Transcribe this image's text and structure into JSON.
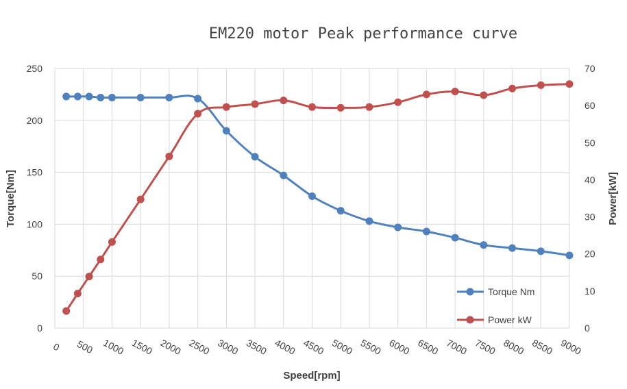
{
  "chart_data": {
    "type": "line",
    "title": "EM220 motor Peak performance curve",
    "xlabel": "Speed[rpm]",
    "ylabel": "Torque[Nm]",
    "y2label": "Power[kW]",
    "xlim": [
      0,
      9000
    ],
    "ylim": [
      0,
      250
    ],
    "y2lim": [
      0,
      70
    ],
    "x_ticks": [
      0,
      500,
      1000,
      1500,
      2000,
      2500,
      3000,
      3500,
      4000,
      4500,
      5000,
      5500,
      6000,
      6500,
      7000,
      7500,
      8000,
      8500,
      9000
    ],
    "y_ticks": [
      0,
      50,
      100,
      150,
      200,
      250
    ],
    "y2_ticks": [
      0,
      10,
      20,
      30,
      40,
      50,
      60,
      70
    ],
    "grid": true,
    "legend_position": "bottom-right",
    "series": [
      {
        "name": "Torque Nm",
        "axis": "left",
        "color": "#4f81bd",
        "x": [
          200,
          400,
          600,
          800,
          1000,
          1500,
          2000,
          2500,
          3000,
          3500,
          4000,
          4500,
          5000,
          5500,
          6000,
          6500,
          7000,
          7500,
          8000,
          8500,
          9000
        ],
        "values": [
          223,
          223,
          223,
          222,
          222,
          222,
          222,
          221,
          190,
          165,
          147,
          127,
          113,
          103,
          97,
          93,
          87,
          80,
          77,
          74,
          70
        ]
      },
      {
        "name": "Power kW",
        "axis": "right",
        "color": "#c0504d",
        "x": [
          200,
          400,
          600,
          800,
          1000,
          1500,
          2000,
          2500,
          3000,
          3500,
          4000,
          4500,
          5000,
          5500,
          6000,
          6500,
          7000,
          7500,
          8000,
          8500,
          9000
        ],
        "values": [
          4.6,
          9.3,
          13.9,
          18.5,
          23.2,
          34.7,
          46.3,
          57.8,
          59.6,
          60.4,
          61.4,
          59.6,
          59.4,
          59.6,
          60.9,
          63.0,
          63.8,
          62.8,
          64.6,
          65.5,
          65.8
        ]
      }
    ]
  }
}
